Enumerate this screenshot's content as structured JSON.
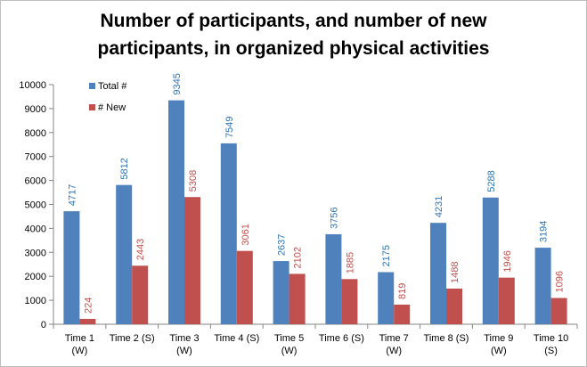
{
  "chart_data": {
    "type": "bar",
    "title_lines": [
      "Number of participants, and number of new",
      "participants, in organized physical activities"
    ],
    "categories": [
      [
        "Time 1",
        "(W)"
      ],
      [
        "Time 2 (S)"
      ],
      [
        "Time 3",
        "(W)"
      ],
      [
        "Time 4 (S)"
      ],
      [
        "Time 5",
        "(W)"
      ],
      [
        "Time 6 (S)"
      ],
      [
        "Time 7",
        "(W)"
      ],
      [
        "Time 8 (S)"
      ],
      [
        "Time 9",
        "(W)"
      ],
      [
        "Time 10",
        "(S)"
      ]
    ],
    "series": [
      {
        "name": "Total #",
        "color": "#4f81bd",
        "label_color": "#2e75b6",
        "values": [
          4717,
          5812,
          9345,
          7549,
          2637,
          3756,
          2175,
          4231,
          5288,
          3194
        ]
      },
      {
        "name": "# New",
        "color": "#c0504d",
        "label_color": "#c0504d",
        "values": [
          224,
          2443,
          5308,
          3061,
          2102,
          1885,
          819,
          1488,
          1946,
          1096
        ]
      }
    ],
    "ylim": [
      0,
      10000
    ],
    "yticks": [
      0,
      1000,
      2000,
      3000,
      4000,
      5000,
      6000,
      7000,
      8000,
      9000,
      10000
    ],
    "xlabel": "",
    "ylabel": "",
    "grid": false,
    "legend": "top-left"
  }
}
